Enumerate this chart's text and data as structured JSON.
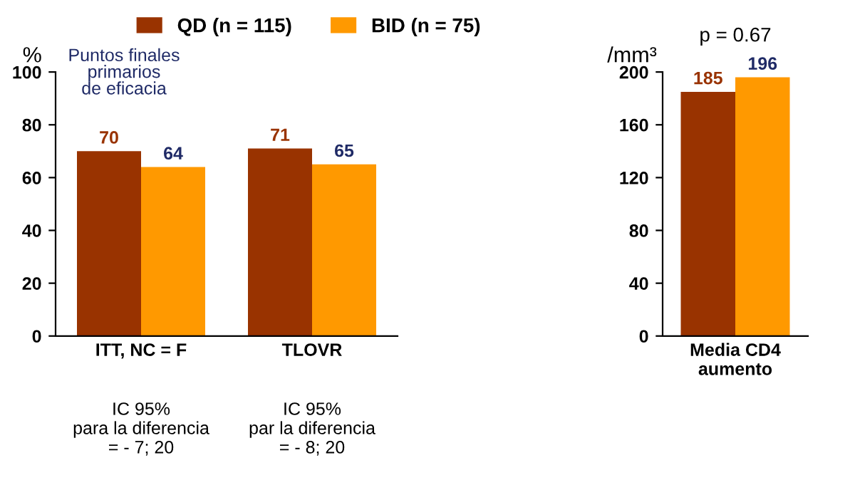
{
  "chart_data": [
    {
      "type": "bar",
      "title": "Puntos finales\nprimarios\nde eficacia",
      "ylabel": "%",
      "categories": [
        "ITT, NC = F",
        "TLOVR"
      ],
      "series": [
        {
          "name": "QD (n = 115)",
          "color": "#993300",
          "values": [
            70,
            71
          ]
        },
        {
          "name": "BID (n = 75)",
          "color": "#ff9900",
          "values": [
            64,
            65
          ]
        }
      ],
      "ylim": [
        0,
        100
      ],
      "yticks": [
        0,
        20,
        40,
        60,
        80,
        100
      ],
      "data_labels": true,
      "legend": "top",
      "annotations": [
        "IC 95%\npara la diferencia\n= - 7; 20",
        "IC 95%\npar la diferencia\n= - 8; 20"
      ]
    },
    {
      "type": "bar",
      "title": "p = 0.67",
      "ylabel": "/mm³",
      "categories": [
        "Media CD4\naumento"
      ],
      "series": [
        {
          "color": "#993300",
          "values": [
            185
          ]
        },
        {
          "color": "#ff9900",
          "values": [
            196
          ]
        }
      ],
      "ylim": [
        0,
        200
      ],
      "yticks": [
        0,
        40,
        80,
        120,
        160,
        200
      ],
      "data_labels": true
    }
  ]
}
